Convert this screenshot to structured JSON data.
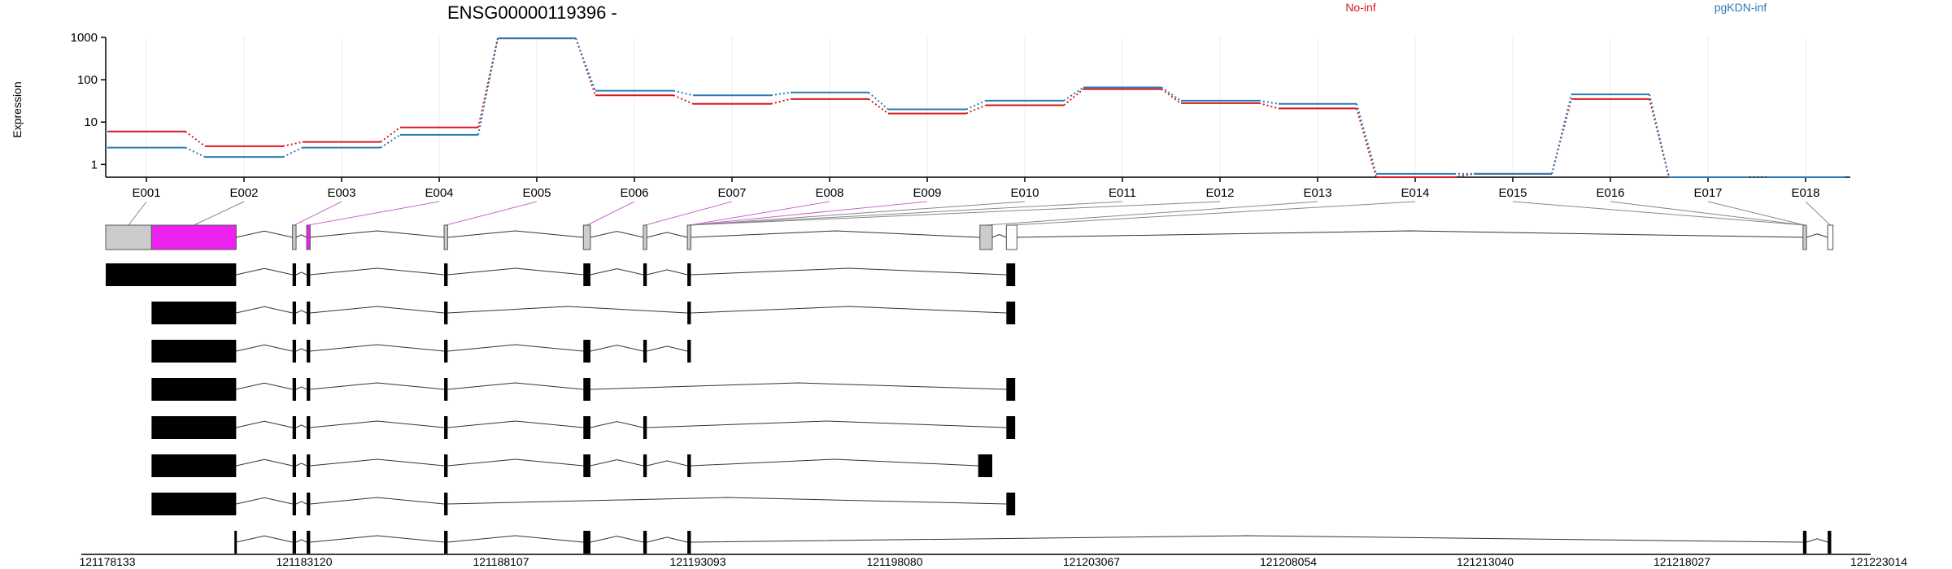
{
  "chart_data": {
    "type": "line",
    "title": "ENSG00000119396 -",
    "ylabel": "Expression",
    "xlabel": "",
    "yscale": "log",
    "ylim": [
      0.5,
      1000
    ],
    "yticks": [
      "1",
      "10",
      "100",
      "1000"
    ],
    "grid": true,
    "legend_placement": "top",
    "categories": [
      "E001",
      "E002",
      "E003",
      "E004",
      "E005",
      "E006",
      "E007",
      "E008",
      "E009",
      "E010",
      "E011",
      "E012",
      "E013",
      "E014",
      "E015",
      "E016",
      "E017",
      "E018"
    ],
    "series": [
      {
        "name": "No-inf",
        "color": "#d7191c",
        "values": [
          6,
          2.7,
          3.4,
          7.5,
          950,
          43,
          27,
          35,
          16,
          25,
          60,
          28,
          21,
          0.5,
          0.6,
          35,
          0.5,
          0.5
        ]
      },
      {
        "name": "pgKDN-inf",
        "color": "#2c7bb6",
        "values": [
          2.5,
          1.5,
          2.5,
          5,
          950,
          55,
          43,
          50,
          20,
          32,
          66,
          32,
          27,
          0.6,
          0.6,
          45,
          0.5,
          0.5
        ]
      }
    ],
    "genomic_axis": {
      "tick_labels": [
        "121178133",
        "121183120",
        "121188107",
        "121193093",
        "121198080",
        "121203067",
        "121208054",
        "121213040",
        "121218027",
        "121223014"
      ]
    }
  },
  "colors": {
    "highlight_exon": "#ee22ee",
    "reference_exon": "#cccccc",
    "transcript_exon": "#000000"
  }
}
